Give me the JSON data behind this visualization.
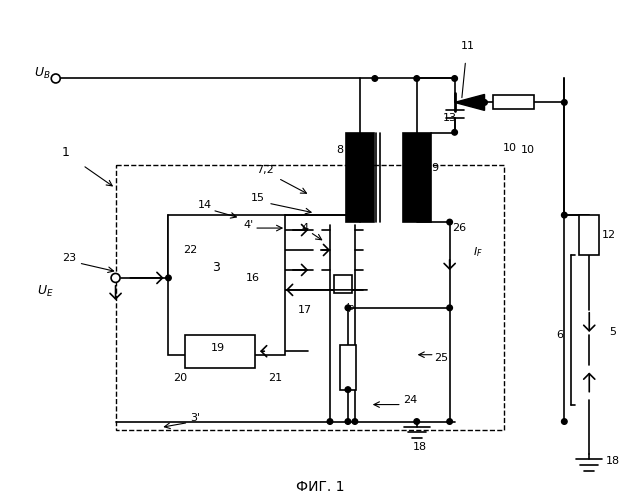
{
  "bg": "#ffffff",
  "lc": "#000000",
  "caption": "ФИГ. 1",
  "fig_w": 6.4,
  "fig_h": 5.0,
  "dpi": 100
}
